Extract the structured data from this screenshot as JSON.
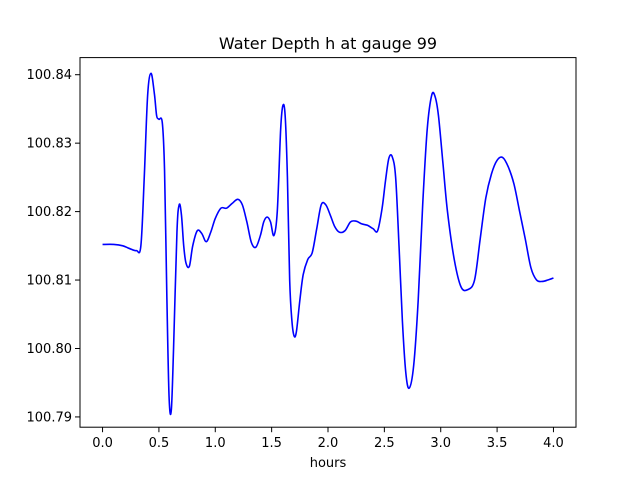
{
  "chart_data": {
    "type": "line",
    "title": "Water Depth h at gauge 99",
    "xlabel": "hours",
    "ylabel": "",
    "xlim": [
      -0.2,
      4.2
    ],
    "ylim": [
      100.7885,
      100.8425
    ],
    "xticks": [
      0.0,
      0.5,
      1.0,
      1.5,
      2.0,
      2.5,
      3.0,
      3.5,
      4.0
    ],
    "xtick_labels": [
      "0.0",
      "0.5",
      "1.0",
      "1.5",
      "2.0",
      "2.5",
      "3.0",
      "3.5",
      "4.0"
    ],
    "yticks": [
      100.79,
      100.8,
      100.81,
      100.82,
      100.83,
      100.84
    ],
    "ytick_labels": [
      "100.79",
      "100.80",
      "100.81",
      "100.82",
      "100.83",
      "100.84"
    ],
    "grid": false,
    "legend": "none",
    "series": [
      {
        "color": "#0000ff",
        "x": [
          0.0,
          0.1,
          0.18,
          0.24,
          0.3,
          0.34,
          0.37,
          0.4,
          0.43,
          0.46,
          0.48,
          0.5,
          0.53,
          0.55,
          0.57,
          0.59,
          0.61,
          0.63,
          0.66,
          0.68,
          0.7,
          0.72,
          0.74,
          0.77,
          0.8,
          0.84,
          0.88,
          0.92,
          0.96,
          1.0,
          1.05,
          1.1,
          1.15,
          1.2,
          1.24,
          1.28,
          1.32,
          1.36,
          1.4,
          1.43,
          1.46,
          1.49,
          1.52,
          1.55,
          1.58,
          1.6,
          1.62,
          1.64,
          1.66,
          1.68,
          1.7,
          1.72,
          1.75,
          1.78,
          1.82,
          1.86,
          1.9,
          1.94,
          1.98,
          2.02,
          2.06,
          2.1,
          2.15,
          2.2,
          2.25,
          2.3,
          2.35,
          2.4,
          2.44,
          2.48,
          2.51,
          2.54,
          2.57,
          2.6,
          2.63,
          2.66,
          2.69,
          2.72,
          2.76,
          2.8,
          2.84,
          2.88,
          2.92,
          2.95,
          2.98,
          3.02,
          3.06,
          3.12,
          3.18,
          3.24,
          3.3,
          3.35,
          3.4,
          3.45,
          3.5,
          3.55,
          3.6,
          3.65,
          3.7,
          3.75,
          3.8,
          3.85,
          3.9,
          3.95,
          4.0
        ],
        "y": [
          100.8152,
          100.8152,
          100.815,
          100.8146,
          100.8143,
          100.815,
          100.825,
          100.837,
          100.8402,
          100.8372,
          100.834,
          100.8335,
          100.833,
          100.826,
          100.808,
          100.793,
          100.791,
          100.8,
          100.817,
          100.821,
          100.8195,
          100.815,
          100.8125,
          100.812,
          100.815,
          100.8172,
          100.8168,
          100.8156,
          100.817,
          100.819,
          100.8205,
          100.8205,
          100.8212,
          100.8218,
          100.821,
          100.8185,
          100.8155,
          100.8148,
          100.8165,
          100.8185,
          100.8192,
          100.8185,
          100.8165,
          100.82,
          100.832,
          100.8355,
          100.834,
          100.825,
          100.81,
          100.804,
          100.8018,
          100.8025,
          100.807,
          100.8108,
          100.813,
          100.814,
          100.8175,
          100.821,
          100.821,
          100.8195,
          100.8178,
          100.817,
          100.8172,
          100.8185,
          100.8186,
          100.8182,
          100.818,
          100.8175,
          100.8172,
          100.8205,
          100.8245,
          100.8278,
          100.828,
          100.825,
          100.815,
          100.804,
          100.7965,
          100.7942,
          100.7975,
          100.807,
          100.821,
          100.832,
          100.837,
          100.8368,
          100.834,
          100.827,
          100.82,
          100.813,
          100.809,
          100.8086,
          100.81,
          100.816,
          100.822,
          100.8255,
          100.8275,
          100.8279,
          100.8265,
          100.824,
          100.82,
          100.816,
          100.8118,
          100.81,
          100.8098,
          100.81,
          100.8103
        ]
      }
    ]
  }
}
